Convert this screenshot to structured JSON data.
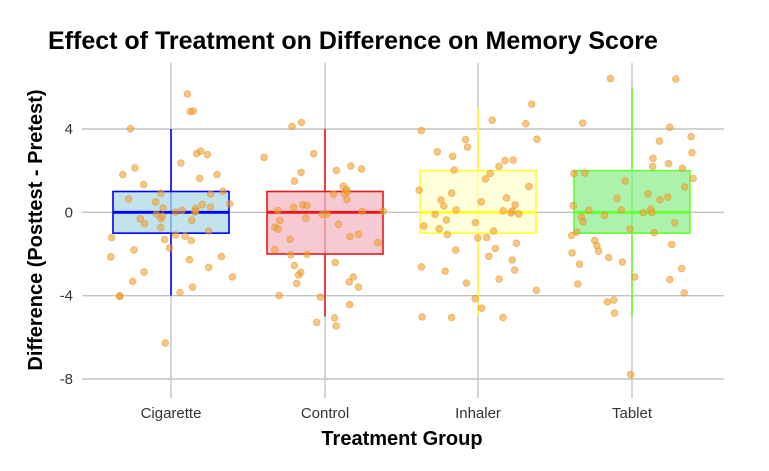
{
  "chart_data": {
    "type": "box",
    "title": "Effect of Treatment on Difference on Memory Score",
    "xlabel": "Treatment Group",
    "ylabel": "Difference (Posttest - Pretest)",
    "ylim": [
      -8.5,
      7
    ],
    "yticks": [
      4,
      0,
      -4,
      -8
    ],
    "grid": true,
    "legend": "none",
    "categories": [
      "Cigarette",
      "Control",
      "Inhaler",
      "Tablet"
    ],
    "boxes": [
      {
        "category": "Cigarette",
        "q1": -1,
        "median": 0,
        "q3": 1,
        "whisker_low": -4,
        "whisker_high": 4,
        "fill": "#add8e6",
        "stroke": "#0000ff"
      },
      {
        "category": "Control",
        "q1": -2,
        "median": 0,
        "q3": 1,
        "whisker_low": -5,
        "whisker_high": 4,
        "fill": "#f4b8c4",
        "stroke": "#e31a1c"
      },
      {
        "category": "Inhaler",
        "q1": -1,
        "median": 0,
        "q3": 2,
        "whisker_low": -5,
        "whisker_high": 5,
        "fill": "#ffffcc",
        "stroke": "#ffff33"
      },
      {
        "category": "Tablet",
        "q1": -1,
        "median": 0,
        "q3": 2,
        "whisker_low": -5,
        "whisker_high": 6,
        "fill": "#90ee90",
        "stroke": "#66ff33"
      }
    ],
    "point_color": "#f0a030",
    "points": [
      {
        "category": "Cigarette",
        "values": [
          4.8,
          5.8,
          4.9,
          4.1,
          2.9,
          2.9,
          2.7,
          2.3,
          2.2,
          1.9,
          1.8,
          1.6,
          1.3,
          1.1,
          0.9,
          0.8,
          0.6,
          0.5,
          0.4,
          0.3,
          0.3,
          0.2,
          0.1,
          0.1,
          0,
          0,
          0,
          -0.1,
          -0.2,
          -0.3,
          -0.4,
          -0.5,
          -0.6,
          -0.8,
          -0.9,
          -1.0,
          -1.1,
          -1.2,
          -1.3,
          -1.4,
          -1.6,
          -1.8,
          -2.1,
          -2.1,
          -2.3,
          -2.6,
          -2.8,
          -3.1,
          -3.3,
          -3.5,
          -3.8,
          -3.9,
          -4.1,
          -6.2
        ]
      },
      {
        "category": "Control",
        "values": [
          4.4,
          4.2,
          2.8,
          2.6,
          2.3,
          2.2,
          2.1,
          1.8,
          1.5,
          1.3,
          1.1,
          1.0,
          0.9,
          0.8,
          0.6,
          0.4,
          0.3,
          0.2,
          0.1,
          0.1,
          0,
          0,
          -0.1,
          -0.3,
          -0.4,
          -0.6,
          -0.8,
          -0.9,
          -1.0,
          -1.2,
          -1.3,
          -1.5,
          -1.7,
          -1.9,
          -2.1,
          -2.3,
          -2.5,
          -2.8,
          -3.0,
          -3.1,
          -3.3,
          -3.5,
          -3.7,
          -4.0,
          -4.1,
          -4.4,
          -5.1,
          -5.3,
          -5.5
        ]
      },
      {
        "category": "Inhaler",
        "values": [
          5.3,
          4.4,
          4.2,
          3.9,
          3.6,
          3.4,
          3.1,
          3.0,
          2.8,
          2.6,
          2.5,
          2.3,
          2.1,
          1.9,
          1.5,
          1.3,
          1.1,
          1.0,
          0.8,
          0.6,
          0.5,
          0.4,
          0.3,
          0.2,
          0.1,
          0,
          0,
          -0.1,
          -0.2,
          -0.4,
          -0.5,
          -0.7,
          -0.8,
          -0.9,
          -1.0,
          -1.2,
          -1.3,
          -1.5,
          -1.7,
          -1.9,
          -2.1,
          -2.3,
          -2.5,
          -2.7,
          -2.9,
          -3.1,
          -3.4,
          -3.7,
          -4.1,
          -4.6,
          -5.0,
          -5.1,
          -5.1
        ]
      },
      {
        "category": "Tablet",
        "values": [
          6.4,
          6.3,
          4.4,
          4.1,
          3.7,
          3.5,
          2.9,
          2.5,
          2.3,
          2.2,
          2.1,
          1.9,
          1.8,
          1.6,
          1.4,
          1.2,
          1.0,
          0.8,
          0.6,
          0.5,
          0.4,
          0.2,
          0.1,
          0,
          0,
          -0.1,
          -0.2,
          -0.3,
          -0.5,
          -0.6,
          -0.7,
          -0.9,
          -1.0,
          -1.2,
          -1.3,
          -1.5,
          -1.6,
          -1.8,
          -2.0,
          -2.2,
          -2.4,
          -2.6,
          -2.8,
          -3.0,
          -3.3,
          -3.5,
          -3.8,
          -4.1,
          -4.4,
          -4.8,
          -7.8
        ]
      }
    ]
  }
}
